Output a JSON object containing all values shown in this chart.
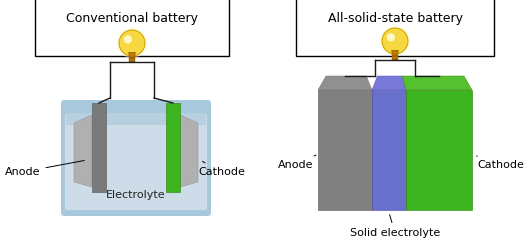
{
  "title_left": "Conventional battery",
  "title_right": "All-solid-state battery",
  "bg_color": "#ffffff",
  "label_anode_left": "Anode",
  "label_cathode_left": "Cathode",
  "label_electrolyte_left": "Electrolyte",
  "label_anode_right": "Anode",
  "label_cathode_right": "Cathode",
  "label_electrolyte_right": "Solid electrolyte",
  "gray_dark": "#7a7a7a",
  "gray_mid": "#999999",
  "gray_light": "#b0b0b0",
  "green_bright": "#3db520",
  "green_dark": "#2a8a10",
  "blue_elec": "#6870cc",
  "liquid_fill": "#cddce8",
  "liquid_top": "#b8cfe0",
  "container_outer": "#a8c8de",
  "wire_color": "#1a1a1a",
  "title_fontsize": 9,
  "label_fontsize": 8
}
